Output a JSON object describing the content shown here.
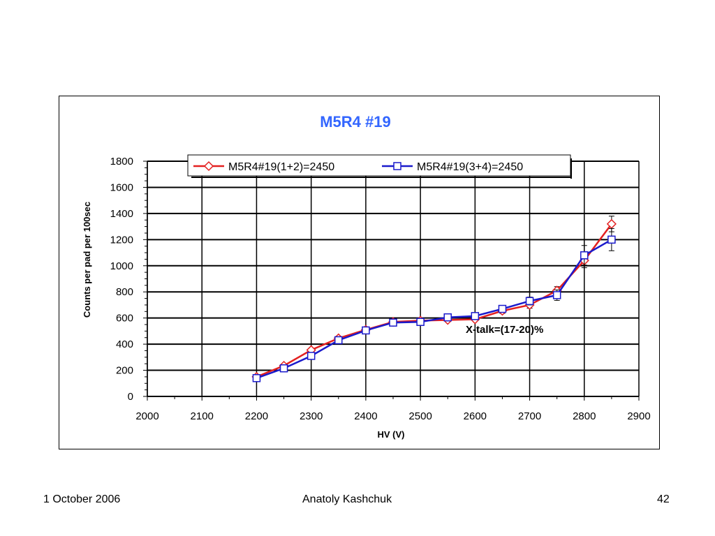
{
  "slide": {
    "footer_date": "1 October 2006",
    "footer_author": "Anatoly Kashchuk",
    "page_number": "42"
  },
  "colors": {
    "title": "#3366ff",
    "series1": "#e32020",
    "series2": "#1a1acc",
    "grid": "#000000"
  },
  "chart_data": {
    "type": "line",
    "title": "M5R4 #19",
    "xlabel": "HV (V)",
    "ylabel": "Counts  per pad per 100sec",
    "xlim": [
      2000,
      2900
    ],
    "ylim": [
      0,
      1800
    ],
    "x_ticks": [
      "2000",
      "2100",
      "2200",
      "2300",
      "2400",
      "2500",
      "2600",
      "2700",
      "2800",
      "2900"
    ],
    "y_ticks": [
      "0",
      "200",
      "400",
      "600",
      "800",
      "1000",
      "1200",
      "1400",
      "1600",
      "1800"
    ],
    "grid": true,
    "legend_position": "top",
    "annotation": "X-talk=(17-20)%",
    "series": [
      {
        "name": "M5R4#19(1+2)=2450",
        "marker": "diamond",
        "color": "#e32020",
        "x": [
          2200,
          2250,
          2300,
          2350,
          2400,
          2450,
          2500,
          2550,
          2600,
          2650,
          2700,
          2750,
          2800,
          2850
        ],
        "y": [
          150,
          235,
          355,
          445,
          510,
          570,
          580,
          585,
          590,
          655,
          700,
          810,
          1040,
          1320
        ],
        "err": [
          0,
          0,
          0,
          0,
          0,
          0,
          0,
          0,
          0,
          20,
          25,
          30,
          55,
          60
        ]
      },
      {
        "name": "M5R4#19(3+4)=2450",
        "marker": "square",
        "color": "#1a1acc",
        "x": [
          2200,
          2250,
          2300,
          2350,
          2400,
          2450,
          2500,
          2550,
          2600,
          2650,
          2700,
          2750,
          2800,
          2850
        ],
        "y": [
          140,
          215,
          310,
          430,
          505,
          565,
          570,
          605,
          615,
          670,
          730,
          775,
          1080,
          1200
        ],
        "err": [
          0,
          0,
          0,
          0,
          0,
          0,
          0,
          0,
          0,
          20,
          30,
          40,
          75,
          85
        ]
      }
    ]
  }
}
